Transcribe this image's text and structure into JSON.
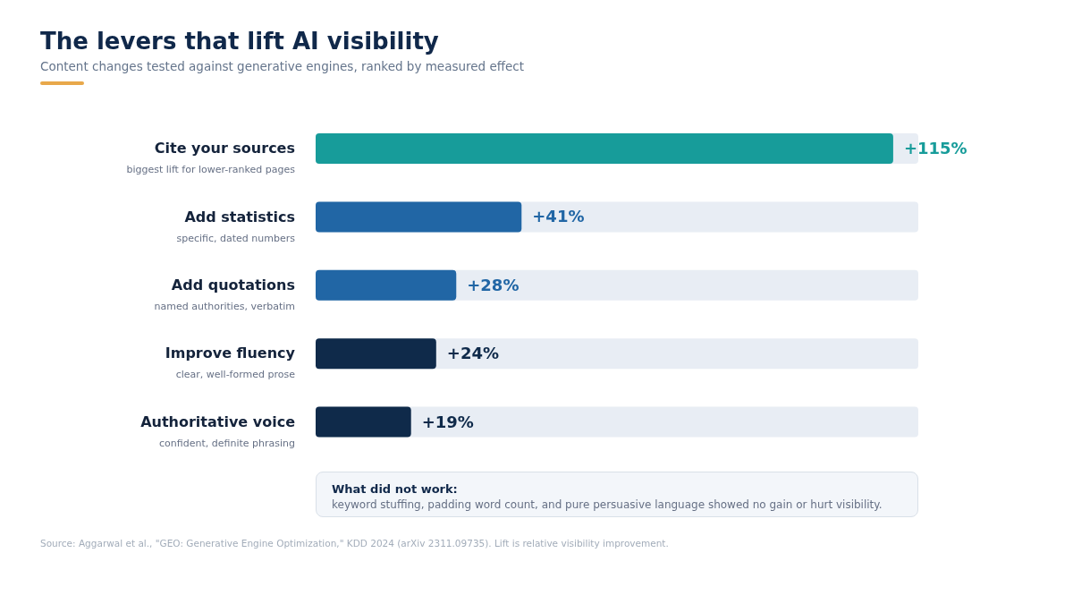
{
  "chart_data": {
    "type": "bar",
    "orientation": "horizontal",
    "title": "The levers that lift AI visibility",
    "subtitle": "Content changes tested against generative engines, ranked by measured effect",
    "categories": [
      "Cite your sources",
      "Add statistics",
      "Add quotations",
      "Improve fluency",
      "Authoritative voice"
    ],
    "values": [
      115,
      41,
      28,
      24,
      19
    ],
    "colors": [
      "#179c9a",
      "#2166a5",
      "#2166a5",
      "#0f2a4a",
      "#0f2a4a"
    ],
    "value_labels": [
      "+115%",
      "+41%",
      "+28%",
      "+24%",
      "+19%"
    ],
    "xlim": [
      0,
      120
    ],
    "tick_labels": "y",
    "annotations": [
      "biggest lift for lower-ranked pages",
      "specific, dated numbers",
      "named authorities, verbatim",
      "clear, well-formed prose",
      "confident, definite phrasing",
      "What did not work:",
      "keyword stuffing, padding word count, and pure persuasive language showed no gain or hurt visibility.",
      "Source: Aggarwal et al., \"GEO: Generative Engine Optimization,\" KDD 2024 (arXiv 2311.09735). Lift is relative visibility improvement."
    ]
  }
}
